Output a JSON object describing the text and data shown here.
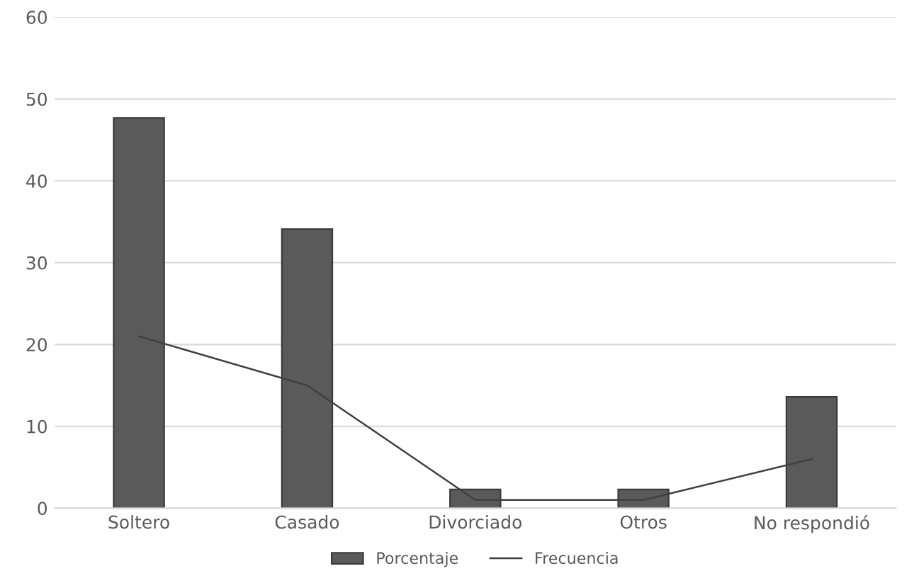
{
  "chart_data": {
    "type": "bar",
    "categories": [
      "Soltero",
      "Casado",
      "Divorciado",
      "Otros",
      "No respondió"
    ],
    "series": [
      {
        "name": "Porcentaje",
        "color": "#5a5a5a",
        "values": [
          47.7,
          34.1,
          2.3,
          2.3,
          13.6
        ]
      },
      {
        "name": "Frecuencia",
        "type": "line",
        "color": "#404040",
        "values": [
          21,
          15,
          1,
          1,
          6
        ]
      }
    ],
    "ylim": [
      0,
      60
    ],
    "yticks": [
      0,
      10,
      20,
      30,
      40,
      50,
      60
    ],
    "grid": "y",
    "legend": "bottom",
    "marker": "none",
    "line_style": "solid"
  }
}
